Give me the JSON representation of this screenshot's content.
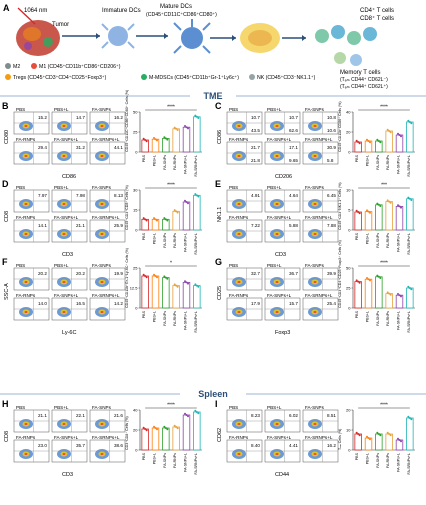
{
  "panelA": {
    "letter": "A",
    "laser": "1064 nm",
    "tumor": "Tumor",
    "immature_dcs": "Immature DCs",
    "mature_dcs_line1": "Mature  DCs",
    "mature_dcs_line2": "(CD45⁺CD11C⁺CD86⁺CD80⁺)",
    "cd4_cd8": "CD4⁺ T cells",
    "cd8": "CD8⁺ T cells",
    "memory_title": "Memory T cells",
    "memory_tem": "(Tₑₘ CD44⁺ CD62L⁻)",
    "memory_tcm": "(Tₑₘ CD44⁺ CD62L⁺)",
    "m2": "M2",
    "m1": "M1 (CD45⁺CD11b⁺CD86⁺CD206⁺)",
    "tregs": "Tregs (CD45⁺CD3⁺CD4⁺CD25⁺Foxp3⁺)",
    "mdscs": "M-MDSCs (CD45⁺CD11b⁺Gr-1⁺Ly6c⁺)",
    "nk": "NK (CD45⁺CD3⁻NK1.1⁺)"
  },
  "section_tme": "TME",
  "section_spleen": "Spleen",
  "groups": [
    "PBS",
    "PBS+L",
    "FA-SNPs",
    "FA-RNPs",
    "FA-SNPs+L",
    "FA-SRNPs+L"
  ],
  "colors": {
    "pbs": "#d62728",
    "pbsl": "#ff7f0e",
    "fasnps": "#2ca02c",
    "farnps": "#e6a23c",
    "fasnpsl": "#8e44ad",
    "fasrnpsl": "#1fb5b5",
    "accent": "#2b4f7a"
  },
  "panels": [
    {
      "letter": "B",
      "xaxis": "CD86",
      "yaxis": "CD80",
      "q": [
        "15.2",
        "14.7",
        "16.2",
        "29.4",
        "31.2",
        "44.1"
      ],
      "ylabel": "CD45⁺CD11C⁺CD86⁺CD80⁺ Cells (%)",
      "sig": "****"
    },
    {
      "letter": "C",
      "xaxis": "CD206",
      "yaxis": "CD86",
      "q": [
        "10.7",
        "10.7",
        "10.8",
        "21.7",
        "17.1",
        "30.9"
      ],
      "q2": [
        "43.5",
        "62.6",
        "10.6",
        "21.8",
        "9.65",
        "5.8"
      ],
      "ylabel": "CD45⁺CD11b⁺CD86⁺ Cells (%)",
      "sig": "****"
    },
    {
      "letter": "D",
      "xaxis": "CD3",
      "yaxis": "CD8",
      "q": [
        "7.97",
        "7.98",
        "8.13",
        "14.1",
        "21.1",
        "25.9"
      ],
      "ylabel": "CD45⁺CD3⁺CD8⁺ Cells (%)",
      "sig": "****"
    },
    {
      "letter": "E",
      "xaxis": "CD3",
      "yaxis": "NK1.1",
      "q": [
        "4.91",
        "4.64",
        "6.45",
        "7.22",
        "5.88",
        "7.88"
      ],
      "ylabel": "CD45⁺CD3⁻NK1.1⁺ Cells (%)",
      "sig": "***"
    },
    {
      "letter": "F",
      "xaxis": "Ly-6C",
      "yaxis": "SSC-A",
      "q": [
        "20.2",
        "20.2",
        "19.9",
        "14.0",
        "16.5",
        "14.2"
      ],
      "ylabel": "CD45⁺CD11b⁺Gr-1⁺Ly-6C⁺ Cells (%)",
      "sig": "*"
    },
    {
      "letter": "G",
      "xaxis": "Foxp3",
      "yaxis": "CD25",
      "q": [
        "32.7",
        "36.7",
        "39.9",
        "17.9",
        "15.7",
        "25.4"
      ],
      "ylabel": "CD45⁺CD3⁺CD4⁺CD25⁺Foxp3⁺ Cells (%)",
      "sig": "****"
    },
    {
      "letter": "H",
      "xaxis": "CD3",
      "yaxis": "CD8",
      "q": [
        "21.1",
        "22.1",
        "21.6",
        "23.0",
        "35.7",
        "38.6"
      ],
      "ylabel": "CD3⁺CD8⁺ Cells (%)",
      "sig": "****"
    },
    {
      "letter": "I",
      "xaxis": "CD44",
      "yaxis": "CD62",
      "q": [
        "8.23",
        "6.02",
        "8.51",
        "8.40",
        "4.41",
        "16.2"
      ],
      "ylabel": "Tₑₘ Cells (%)",
      "sig": "****"
    }
  ],
  "chart_data": [
    {
      "type": "bar",
      "panel": "B",
      "categories": [
        "PBS",
        "PBS+L",
        "FA-SNPs",
        "FA-RNPs",
        "FA-SNPs+L",
        "FA-SRNPs+L"
      ],
      "values": [
        15,
        16,
        17,
        29,
        31,
        44
      ],
      "ylim": [
        0,
        50
      ],
      "ylabel": "CD45⁺CD11C⁺CD86⁺CD80⁺ Cells (%)"
    },
    {
      "type": "bar",
      "panel": "C",
      "categories": [
        "PBS",
        "PBS+L",
        "FA-SNPs",
        "FA-RNPs",
        "FA-SNPs+L",
        "FA-SRNPs+L"
      ],
      "values": [
        10,
        11,
        11,
        21,
        17,
        30
      ],
      "ylim": [
        0,
        40
      ],
      "ylabel": "CD45⁺CD11b⁺CD86⁺ Cells (%)"
    },
    {
      "type": "bar",
      "panel": "D",
      "categories": [
        "PBS",
        "PBS+L",
        "FA-SNPs",
        "FA-RNPs",
        "FA-SNPs+L",
        "FA-SRNPs+L"
      ],
      "values": [
        8,
        8,
        8,
        14,
        21,
        26
      ],
      "ylim": [
        0,
        30
      ],
      "ylabel": "CD45⁺CD3⁺CD8⁺ Cells (%)"
    },
    {
      "type": "bar",
      "panel": "E",
      "categories": [
        "PBS",
        "PBS+L",
        "FA-SNPs",
        "FA-RNPs",
        "FA-SNPs+L",
        "FA-SRNPs+L"
      ],
      "values": [
        4.5,
        4.6,
        6.3,
        7.1,
        5.9,
        7.8
      ],
      "ylim": [
        0,
        10
      ],
      "ylabel": "CD45⁺CD3⁻NK1.1⁺ Cells (%)"
    },
    {
      "type": "bar",
      "panel": "F",
      "categories": [
        "PBS",
        "PBS+L",
        "FA-SNPs",
        "FA-RNPs",
        "FA-SNPs+L",
        "FA-SRNPs+L"
      ],
      "values": [
        20,
        20,
        19,
        14,
        16,
        14
      ],
      "ylim": [
        0,
        25
      ],
      "ylabel": "CD45⁺CD11b⁺Gr-1⁺Ly-6C⁺ Cells (%)"
    },
    {
      "type": "bar",
      "panel": "G",
      "categories": [
        "PBS",
        "PBS+L",
        "FA-SNPs",
        "FA-RNPs",
        "FA-SNPs+L",
        "FA-SRNPs+L"
      ],
      "values": [
        33,
        36,
        39,
        18,
        16,
        25
      ],
      "ylim": [
        0,
        50
      ],
      "ylabel": "CD45⁺CD3⁺CD4⁺CD25⁺Foxp3⁺ Cells (%)"
    },
    {
      "type": "bar",
      "panel": "H",
      "categories": [
        "PBS",
        "PBS+L",
        "FA-SNPs",
        "FA-RNPs",
        "FA-SNPs+L",
        "FA-SRNPs+L"
      ],
      "values": [
        21,
        22,
        22,
        23,
        35,
        38
      ],
      "ylim": [
        0,
        40
      ],
      "ylabel": "CD3⁺CD8⁺ Cells (%)"
    },
    {
      "type": "bar",
      "panel": "I",
      "categories": [
        "PBS",
        "PBS+L",
        "FA-SNPs",
        "FA-RNPs",
        "FA-SNPs+L",
        "FA-SRNPs+L"
      ],
      "values": [
        8,
        6,
        8,
        8,
        5,
        16
      ],
      "ylim": [
        0,
        20
      ],
      "ylabel": "Tₑₘ Cells (%)"
    }
  ]
}
